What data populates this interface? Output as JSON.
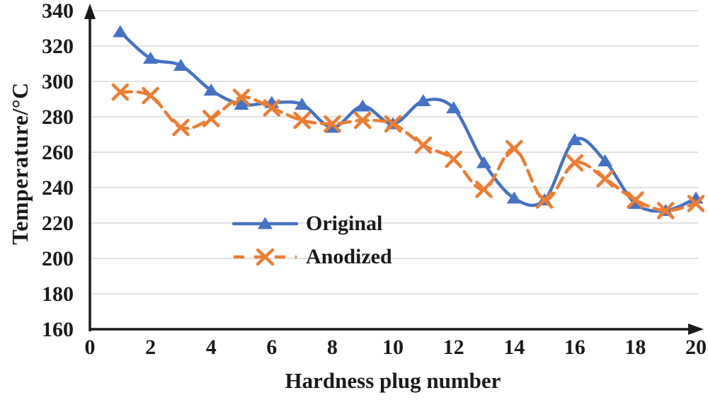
{
  "chart_data": {
    "type": "line",
    "title": "",
    "xlabel": "Hardness plug number",
    "ylabel": "Temperature/°C",
    "x": [
      1,
      2,
      3,
      4,
      5,
      6,
      7,
      8,
      9,
      10,
      11,
      12,
      13,
      14,
      15,
      16,
      17,
      18,
      19,
      20
    ],
    "series": [
      {
        "name": "Original",
        "color": "#4472C4",
        "marker": "triangle",
        "line_style": "solid",
        "smoothed": true,
        "values": [
          328,
          313,
          309,
          295,
          287,
          288,
          287,
          274,
          286,
          276,
          289,
          285,
          254,
          234,
          233,
          267,
          255,
          231,
          227,
          234
        ]
      },
      {
        "name": "Anodized",
        "color": "#ED7D31",
        "marker": "x",
        "line_style": "dashed",
        "smoothed": true,
        "values": [
          294,
          292,
          274,
          279,
          291,
          285,
          278,
          276,
          278,
          276,
          264,
          256,
          239,
          262,
          233,
          254,
          245,
          233,
          227,
          231
        ]
      }
    ],
    "xlim": [
      0,
      20
    ],
    "ylim": [
      160,
      340
    ],
    "x_ticks": [
      0,
      2,
      4,
      6,
      8,
      10,
      12,
      14,
      16,
      18,
      20
    ],
    "y_ticks": [
      160,
      180,
      200,
      220,
      240,
      260,
      280,
      300,
      320,
      340
    ],
    "grid": "horizontal",
    "gridline_color": "#D9D9D9",
    "axis_color": "#1A1A1A",
    "legend_position": "inside-center-left"
  }
}
